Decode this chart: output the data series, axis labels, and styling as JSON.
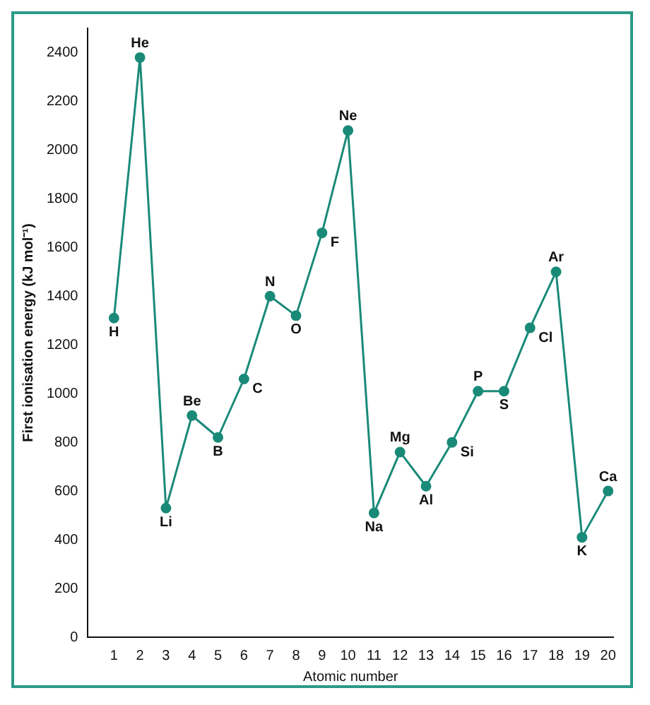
{
  "chart_data": {
    "type": "line",
    "xlabel": "Atomic number",
    "ylabel": "First ionisation energy (kJ mol⁻¹)",
    "x": [
      1,
      2,
      3,
      4,
      5,
      6,
      7,
      8,
      9,
      10,
      11,
      12,
      13,
      14,
      15,
      16,
      17,
      18,
      19,
      20
    ],
    "series": [
      {
        "color": "#1a8a78",
        "values": [
          1310,
          2380,
          530,
          910,
          820,
          1060,
          1400,
          1320,
          1660,
          2080,
          510,
          760,
          620,
          800,
          1010,
          1010,
          1270,
          1500,
          410,
          600
        ]
      }
    ],
    "xlim": [
      0,
      20.2
    ],
    "xticks": [
      1,
      2,
      3,
      4,
      5,
      6,
      7,
      8,
      9,
      10,
      11,
      12,
      13,
      14,
      15,
      16,
      17,
      18,
      19,
      20
    ],
    "ylim": [
      0,
      2500
    ],
    "yticks": [
      0,
      200,
      400,
      600,
      800,
      1000,
      1200,
      1400,
      1600,
      1800,
      2000,
      2200,
      2400
    ],
    "grid": false,
    "legend": false,
    "marker": "circle",
    "line_style": "solid",
    "annotations": [
      {
        "text": "H",
        "x": 1,
        "y": 1310
      },
      {
        "text": "He",
        "x": 2,
        "y": 2380
      },
      {
        "text": "Li",
        "x": 3,
        "y": 530
      },
      {
        "text": "Be",
        "x": 4,
        "y": 910
      },
      {
        "text": "B",
        "x": 5,
        "y": 820
      },
      {
        "text": "C",
        "x": 6,
        "y": 1060
      },
      {
        "text": "N",
        "x": 7,
        "y": 1400
      },
      {
        "text": "O",
        "x": 8,
        "y": 1320
      },
      {
        "text": "F",
        "x": 9,
        "y": 1660
      },
      {
        "text": "Ne",
        "x": 10,
        "y": 2080
      },
      {
        "text": "Na",
        "x": 11,
        "y": 510
      },
      {
        "text": "Mg",
        "x": 12,
        "y": 760
      },
      {
        "text": "Al",
        "x": 13,
        "y": 620
      },
      {
        "text": "Si",
        "x": 14,
        "y": 800
      },
      {
        "text": "P",
        "x": 15,
        "y": 1010
      },
      {
        "text": "S",
        "x": 16,
        "y": 1010
      },
      {
        "text": "Cl",
        "x": 17,
        "y": 1270
      },
      {
        "text": "Ar",
        "x": 18,
        "y": 1500
      },
      {
        "text": "K",
        "x": 19,
        "y": 410
      },
      {
        "text": "Ca",
        "x": 20,
        "y": 600
      }
    ]
  }
}
